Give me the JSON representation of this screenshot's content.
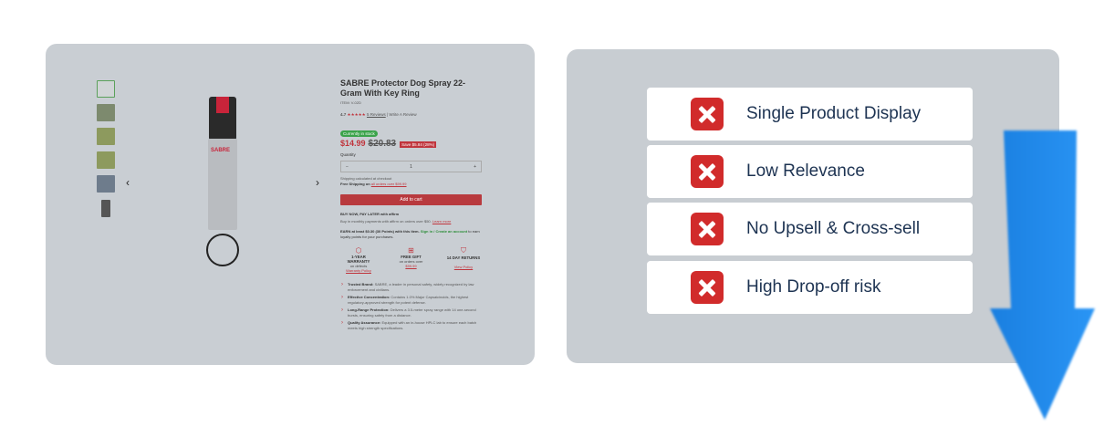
{
  "product": {
    "title": "SABRE Protector Dog Spray 22-Gram With Key Ring",
    "item": "ITEM: V-02D",
    "rating": "4.7",
    "stars": "★★★★★",
    "reviews": "5 Reviews",
    "write_review": "Write A Review",
    "stock": "Currently in stock",
    "price": "$14.99",
    "old_price": "$20.83",
    "save": "Save $5.84 (28%)",
    "quantity_label": "Quantity",
    "quantity": "1",
    "minus": "−",
    "plus": "+",
    "shipping_note": "Shipping calculated at checkout",
    "free_shipping": "Free Shipping on",
    "free_shipping_link": "all orders over $99.99",
    "add_to_cart": "Add to cart",
    "bnpl": "BUY NOW, PAY LATER with affirm",
    "affirm_text": "Buy in monthly payments with affirm on orders over $50.",
    "learn_more": "Learn more",
    "earn_text": "EARN at least $0.30 (30 Points) with this item.",
    "signin": "Sign in / Create an account",
    "earn_suffix": "to earn loyalty points for your purchases.",
    "features": [
      {
        "icon": "box-icon",
        "title": "1-YEAR WARRANTY",
        "sub": "on defects",
        "link": "Warranty Policy"
      },
      {
        "icon": "gift-icon",
        "title": "FREE GIFT",
        "sub": "on orders over",
        "link": "$99.99"
      },
      {
        "icon": "shield-check-icon",
        "title": "14 DAY RETURNS",
        "sub": "",
        "link": "View Policy"
      }
    ],
    "bullets": [
      {
        "b": "Trusted Brand:",
        "t": "SABRE, a leader in personal safety, widely recognized by law enforcement and civilians."
      },
      {
        "b": "Effective Concentration:",
        "t": "Contains 1.0% Major Capsaicinoids, the highest regulatory-approved strength for potent defense."
      },
      {
        "b": "Long-Range Protection:",
        "t": "Delivers a 3.5-meter spray range with 14 one-second bursts, ensuring safety from a distance."
      },
      {
        "b": "Quality Assurance:",
        "t": "Equipped with an in-house HPLC lab to ensure each batch meets high strength specifications."
      }
    ],
    "prev": "‹",
    "next": "›"
  },
  "issues": [
    {
      "label": "Single Product Display"
    },
    {
      "label": "Low Relevance"
    },
    {
      "label": "No Upsell & Cross-sell"
    },
    {
      "label": "High Drop-off risk"
    }
  ],
  "colors": {
    "x": "#d12b2b",
    "arrow": "#1e8ff0",
    "panel": "#c9ced3"
  }
}
